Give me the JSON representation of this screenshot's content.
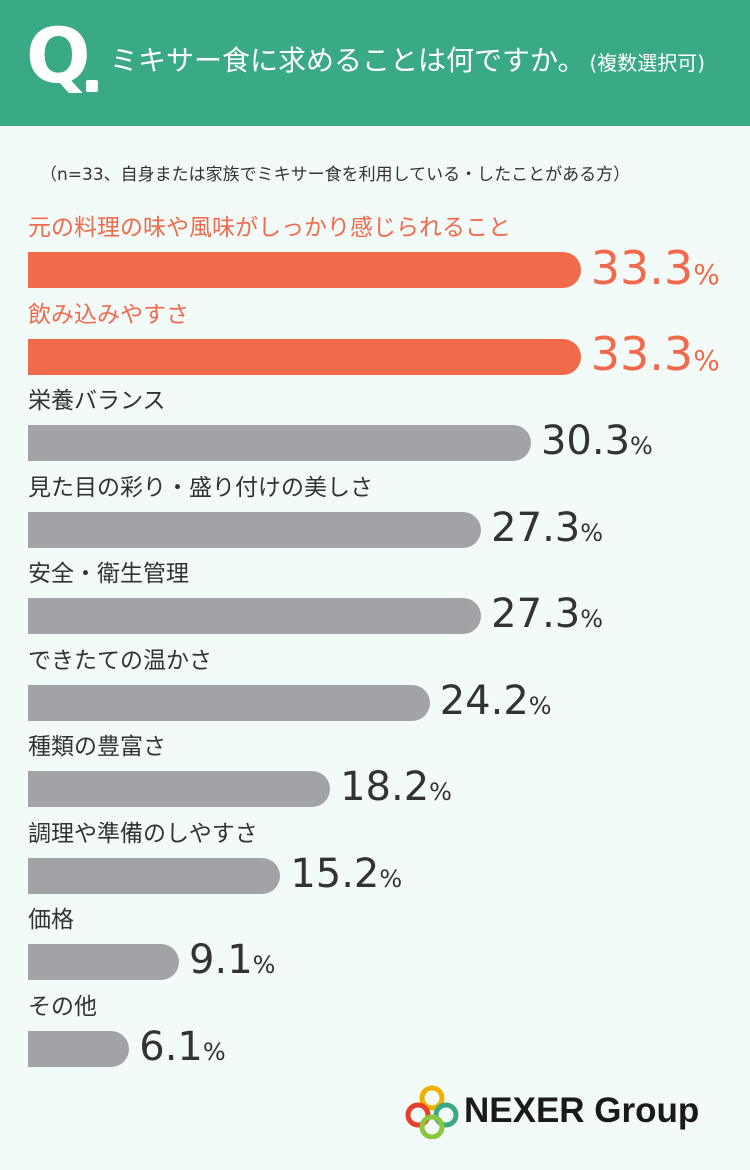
{
  "header": {
    "q_letter": "Q",
    "question": "ミキサー食に求めることは何ですか。",
    "note": "(複数選択可)"
  },
  "subtitle": "（n=33、自身または家族でミキサー食を利用している・したことがある方）",
  "chart_data": {
    "type": "bar",
    "orientation": "horizontal",
    "unit": "%",
    "categories": [
      "元の料理の味や風味がしっかり感じられること",
      "飲み込みやすさ",
      "栄養バランス",
      "見た目の彩り・盛り付けの美しさ",
      "安全・衛生管理",
      "できたての温かさ",
      "種類の豊富さ",
      "調理や準備のしやすさ",
      "価格",
      "その他"
    ],
    "values": [
      33.3,
      33.3,
      30.3,
      27.3,
      27.3,
      24.2,
      18.2,
      15.2,
      9.1,
      6.1
    ],
    "value_labels": [
      "33.3",
      "33.3",
      "30.3",
      "27.3",
      "27.3",
      "24.2",
      "18.2",
      "15.2",
      "9.1",
      "6.1"
    ],
    "highlight_count": 2,
    "colors": {
      "highlight": "#f26a4c",
      "normal": "#a2a3a7",
      "highlight_text": "#f26a4c",
      "normal_text": "#333333"
    }
  },
  "logo": {
    "text": "NEXER Group",
    "ring_colors": [
      "#f0b000",
      "#e83e2d",
      "#3aa986",
      "#8cc63f"
    ]
  }
}
